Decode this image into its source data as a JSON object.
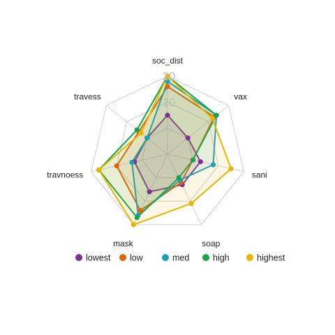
{
  "chart_data": {
    "type": "radar",
    "axes": [
      "soc_dist",
      "vax",
      "sani",
      "soap",
      "mask",
      "travnoess",
      "travess"
    ],
    "ticks": [
      0,
      10,
      20
    ],
    "tick_labels": [
      "0",
      "10",
      "20"
    ],
    "range": [
      -10,
      20
    ],
    "grid": true,
    "legend_position": "bottom",
    "series": [
      {
        "name": "lowest",
        "color": "#7b3294",
        "values": [
          5,
          0,
          3,
          3,
          6,
          3,
          0
        ]
      },
      {
        "name": "low",
        "color": "#e66101",
        "values": [
          16,
          13,
          0,
          2,
          14,
          10,
          4
        ]
      },
      {
        "name": "med",
        "color": "#1a9fb5",
        "values": [
          18,
          14,
          8,
          1,
          16,
          4,
          0
        ]
      },
      {
        "name": "high",
        "color": "#1aa34a",
        "values": [
          20,
          14,
          0,
          0,
          17,
          17,
          5
        ]
      },
      {
        "name": "highest",
        "color": "#e8b500",
        "values": [
          20,
          12,
          15,
          11,
          20,
          17,
          3
        ]
      }
    ]
  }
}
